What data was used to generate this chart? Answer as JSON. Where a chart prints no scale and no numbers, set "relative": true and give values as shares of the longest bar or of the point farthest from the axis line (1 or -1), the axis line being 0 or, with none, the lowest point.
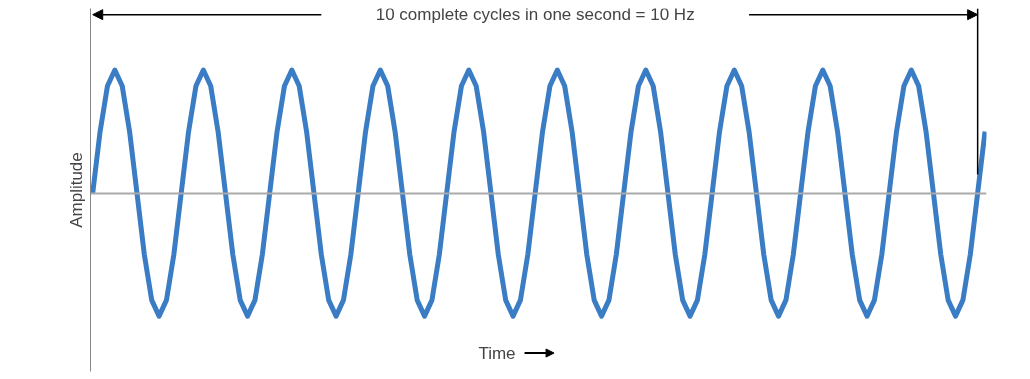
{
  "chart_data": {
    "type": "line",
    "relative": true,
    "ylabel": "Amplitude",
    "xlabel": "Time",
    "annotations": [
      "10 complete cycles in one second = 10 Hz"
    ],
    "marker": "none",
    "line_style": "solid",
    "categories": [
      null,
      null,
      null,
      null,
      null,
      null,
      null,
      null,
      null,
      null,
      null,
      null,
      null,
      null,
      null,
      null,
      null,
      null,
      null,
      null,
      null,
      null,
      null,
      null,
      null,
      null,
      null,
      null,
      null,
      null,
      null,
      null,
      null,
      null,
      null,
      null,
      null,
      null,
      null,
      null,
      null,
      null,
      null,
      null,
      null,
      null,
      null,
      null,
      null,
      null,
      null,
      null,
      null,
      null,
      null,
      null,
      null,
      null,
      null,
      null,
      null,
      null,
      null,
      null,
      null,
      null,
      null,
      null,
      null,
      null,
      null,
      null,
      null,
      null,
      null,
      null,
      null,
      null,
      null,
      null,
      null,
      null,
      null,
      null,
      null,
      null,
      null,
      null,
      null,
      null,
      null,
      null,
      null,
      null,
      null,
      null,
      null,
      null,
      null,
      null,
      null,
      null,
      null,
      null,
      null,
      null,
      null,
      null,
      null,
      null,
      null,
      null,
      null,
      null,
      null,
      null,
      null,
      null,
      null,
      null,
      null,
      null
    ],
    "series": [
      {
        "color": "#3a7dc4",
        "values": [
          0,
          0.5,
          0.87,
          1,
          0.87,
          0.5,
          0,
          -0.5,
          -0.87,
          -1,
          -0.87,
          -0.5,
          0,
          0.5,
          0.87,
          1,
          0.87,
          0.5,
          0,
          -0.5,
          -0.87,
          -1,
          -0.87,
          -0.5,
          0,
          0.5,
          0.87,
          1,
          0.87,
          0.5,
          0,
          -0.5,
          -0.87,
          -1,
          -0.87,
          -0.5,
          0,
          0.5,
          0.87,
          1,
          0.87,
          0.5,
          0,
          -0.5,
          -0.87,
          -1,
          -0.87,
          -0.5,
          0,
          0.5,
          0.87,
          1,
          0.87,
          0.5,
          0,
          -0.5,
          -0.87,
          -1,
          -0.87,
          -0.5,
          0,
          0.5,
          0.87,
          1,
          0.87,
          0.5,
          0,
          -0.5,
          -0.87,
          -1,
          -0.87,
          -0.5,
          0,
          0.5,
          0.87,
          1,
          0.87,
          0.5,
          0,
          -0.5,
          -0.87,
          -1,
          -0.87,
          -0.5,
          0,
          0.5,
          0.87,
          1,
          0.87,
          0.5,
          0,
          -0.5,
          -0.87,
          -1,
          -0.87,
          -0.5,
          0,
          0.5,
          0.87,
          1,
          0.87,
          0.5,
          0,
          -0.5,
          -0.87,
          -1,
          -0.87,
          -0.5,
          0,
          0.5,
          0.87,
          1,
          0.87,
          0.5,
          0,
          -0.5,
          -0.87,
          -1,
          -0.87,
          -0.5,
          0,
          0.5
        ]
      }
    ]
  }
}
